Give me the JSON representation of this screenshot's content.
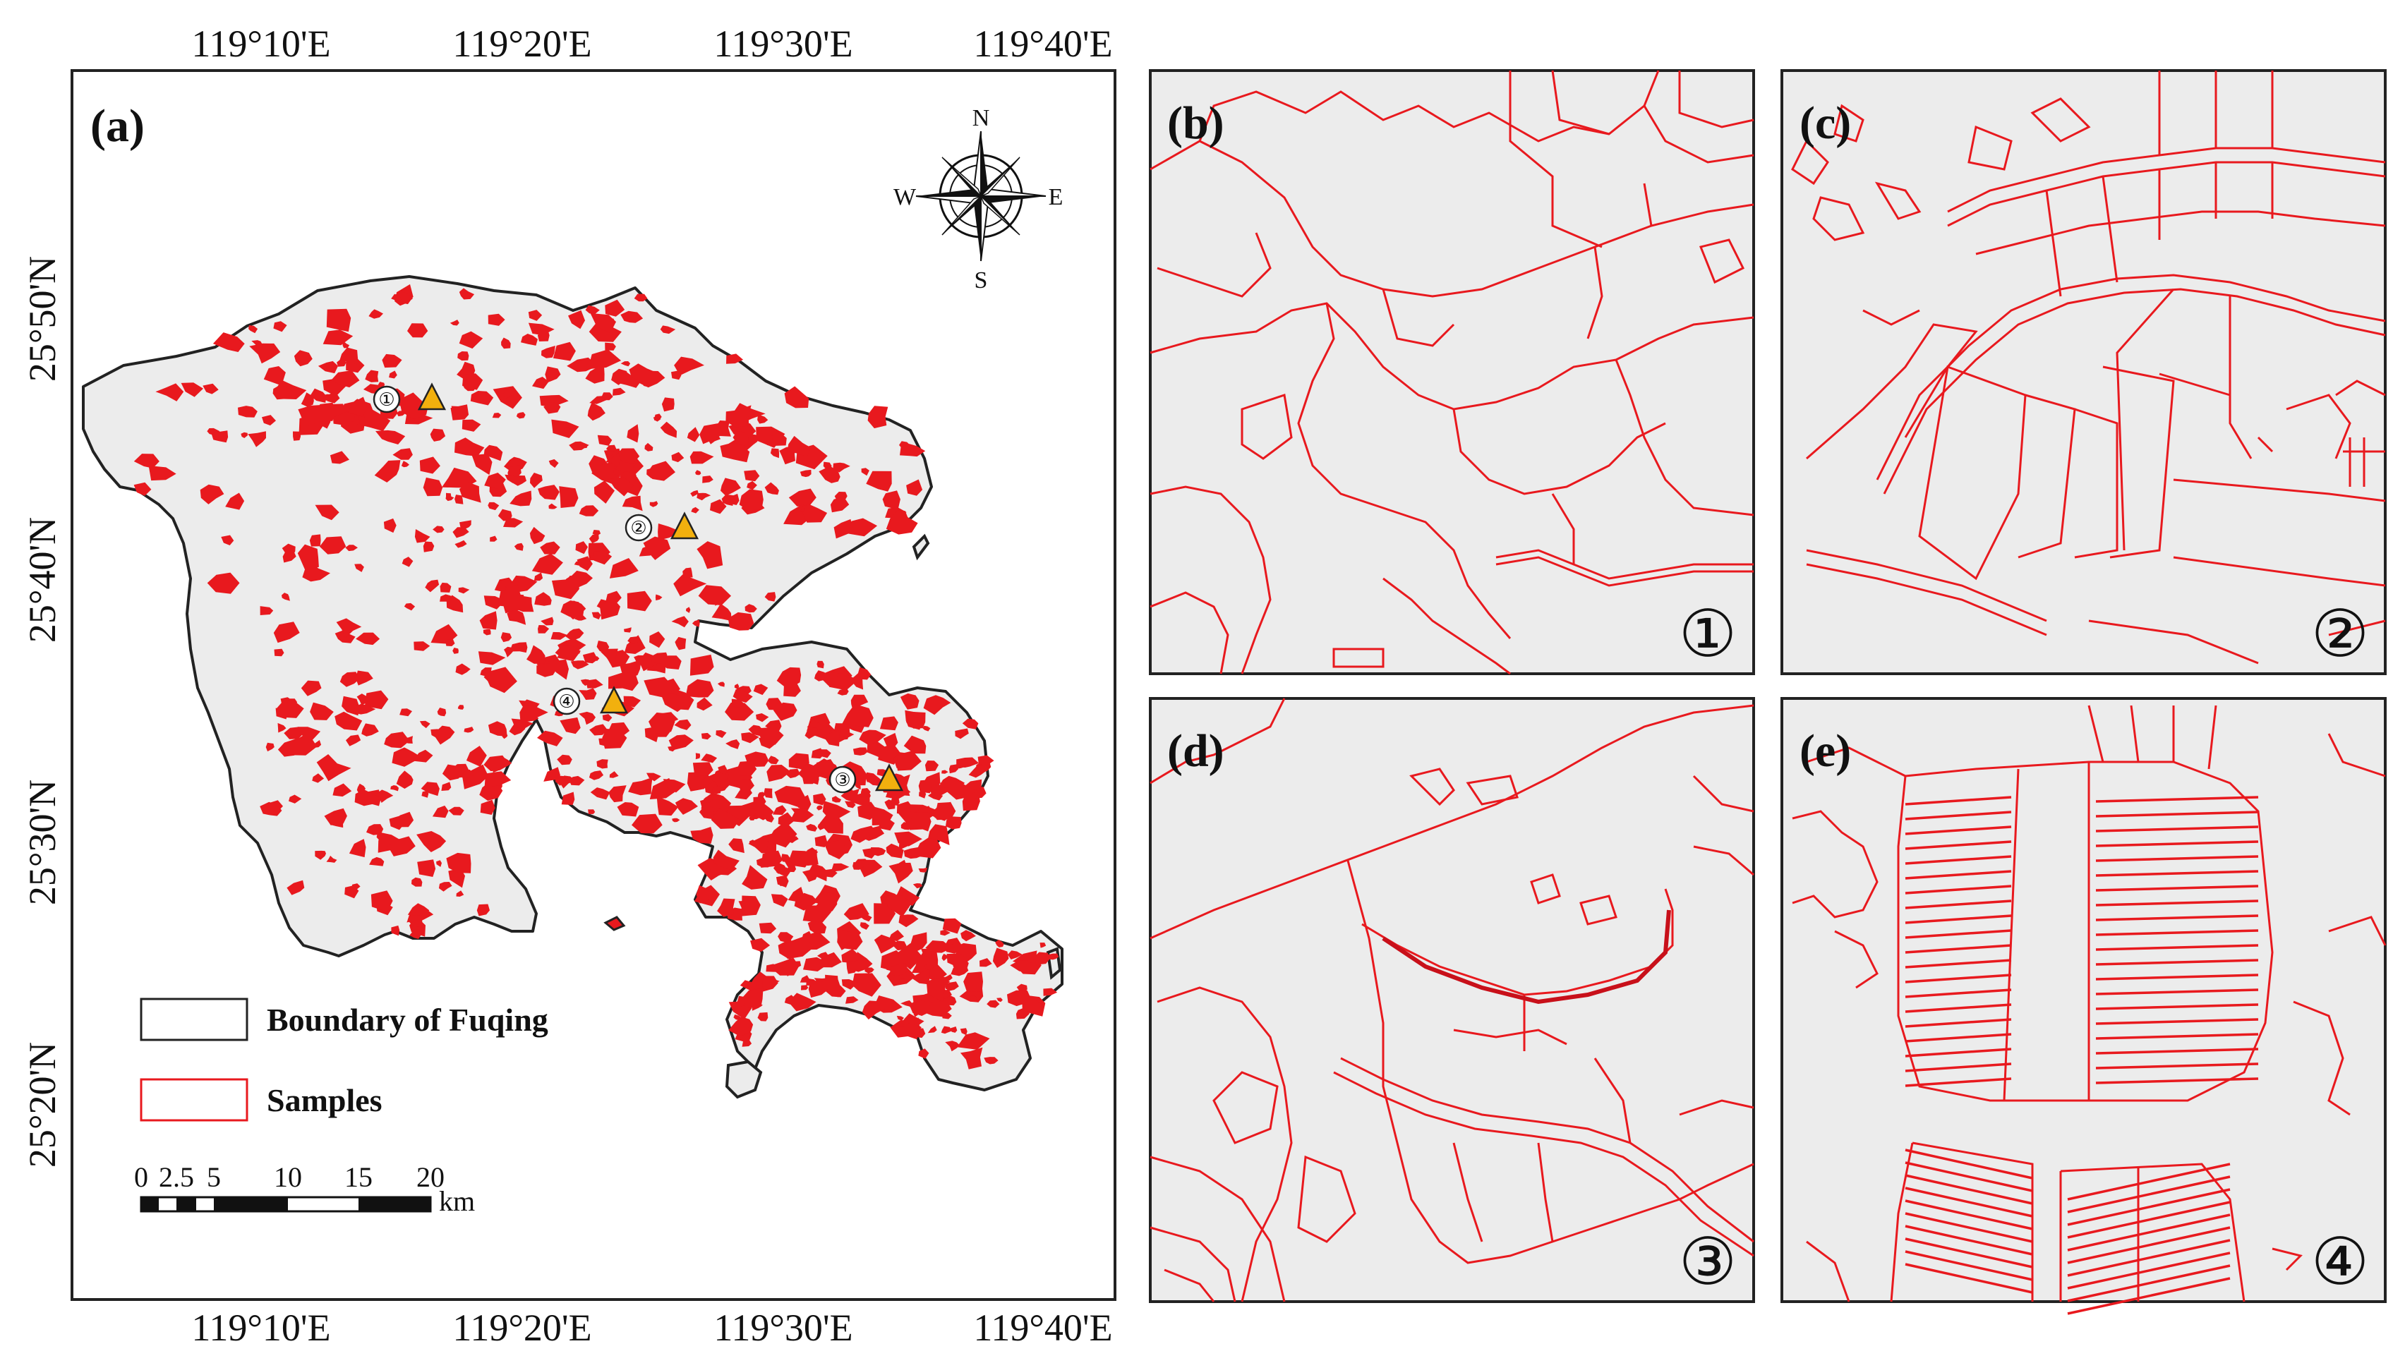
{
  "panels": {
    "a": {
      "label": "(a)"
    },
    "b": {
      "label": "(b)",
      "sample_number": "①"
    },
    "c": {
      "label": "(c)",
      "sample_number": "②"
    },
    "d": {
      "label": "(d)",
      "sample_number": "③"
    },
    "e": {
      "label": "(e)",
      "sample_number": "④"
    }
  },
  "axes": {
    "lon_top": [
      "119°10'E",
      "119°20'E",
      "119°30'E",
      "119°40'E"
    ],
    "lon_bottom": [
      "119°10'E",
      "119°20'E",
      "119°30'E",
      "119°40'E"
    ],
    "lat_left": [
      "25°50'N",
      "25°40'N",
      "25°30'N",
      "25°20'N"
    ]
  },
  "compass": {
    "n": "N",
    "s": "S",
    "e": "E",
    "w": "W"
  },
  "markers": [
    "①",
    "②",
    "③",
    "④"
  ],
  "legend": {
    "boundary": "Boundary of Fuqing",
    "samples": "Samples"
  },
  "scalebar": {
    "ticks": [
      "0",
      "2.5",
      "5",
      "10",
      "15",
      "20"
    ],
    "unit": "km"
  },
  "colors": {
    "sample_red": "#e8191e",
    "land_fill": "#ececec",
    "boundary": "#222222",
    "marker_triangle": "#f2b00e"
  }
}
